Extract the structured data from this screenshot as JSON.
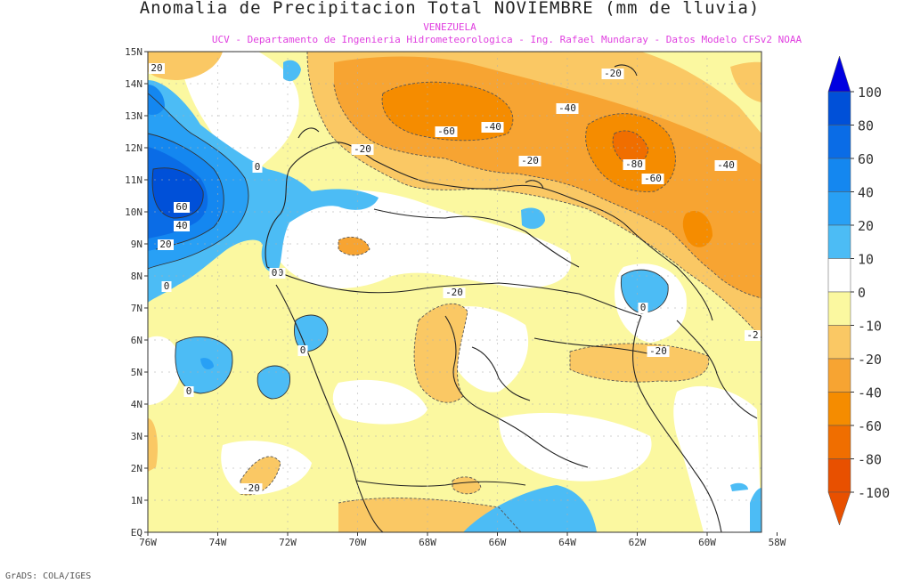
{
  "title": "Anomalia de Precipitacion Total NOVIEMBRE (mm de lluvia)",
  "region_label": "VENEZUELA",
  "source_label": "UCV - Departamento de Ingenieria Hidrometeorologica - Ing. Rafael Mundaray - Datos Modelo CFSv2 NOAA",
  "footer_credit": "GrADS: COLA/IGES",
  "map": {
    "lat_labels": [
      "15N",
      "14N",
      "13N",
      "12N",
      "11N",
      "10N",
      "9N",
      "8N",
      "7N",
      "6N",
      "5N",
      "4N",
      "3N",
      "2N",
      "1N",
      "EQ"
    ],
    "lon_labels": [
      "76W",
      "74W",
      "72W",
      "70W",
      "68W",
      "66W",
      "64W",
      "62W",
      "60W",
      "58W"
    ]
  },
  "colorbar": {
    "labels": [
      "100",
      "80",
      "60",
      "40",
      "20",
      "10",
      "0",
      "-10",
      "-20",
      "-40",
      "-60",
      "-80",
      "-100"
    ],
    "colors": [
      "#0000e0",
      "#0050d8",
      "#0a6ce6",
      "#1487f0",
      "#28a0f5",
      "#4cbcf5",
      "#ffffff",
      "#fbf8a0",
      "#fac864",
      "#f7a432",
      "#f58c00",
      "#f06e00",
      "#e85000"
    ]
  },
  "contour_labels": [
    {
      "text": "20"
    },
    {
      "text": "0"
    },
    {
      "text": "60"
    },
    {
      "text": "40"
    },
    {
      "text": "20"
    },
    {
      "text": "0"
    },
    {
      "text": "0"
    },
    {
      "text": "0"
    },
    {
      "text": "0"
    },
    {
      "text": "-20"
    },
    {
      "text": "-60"
    },
    {
      "text": "-40"
    },
    {
      "text": "-20"
    },
    {
      "text": "-20"
    },
    {
      "text": "-40"
    },
    {
      "text": "-80"
    },
    {
      "text": "-60"
    },
    {
      "text": "-40"
    },
    {
      "text": "-20"
    },
    {
      "text": "0"
    },
    {
      "text": "-20"
    },
    {
      "text": "-2"
    },
    {
      "text": "-20"
    },
    {
      "text": "0"
    }
  ]
}
